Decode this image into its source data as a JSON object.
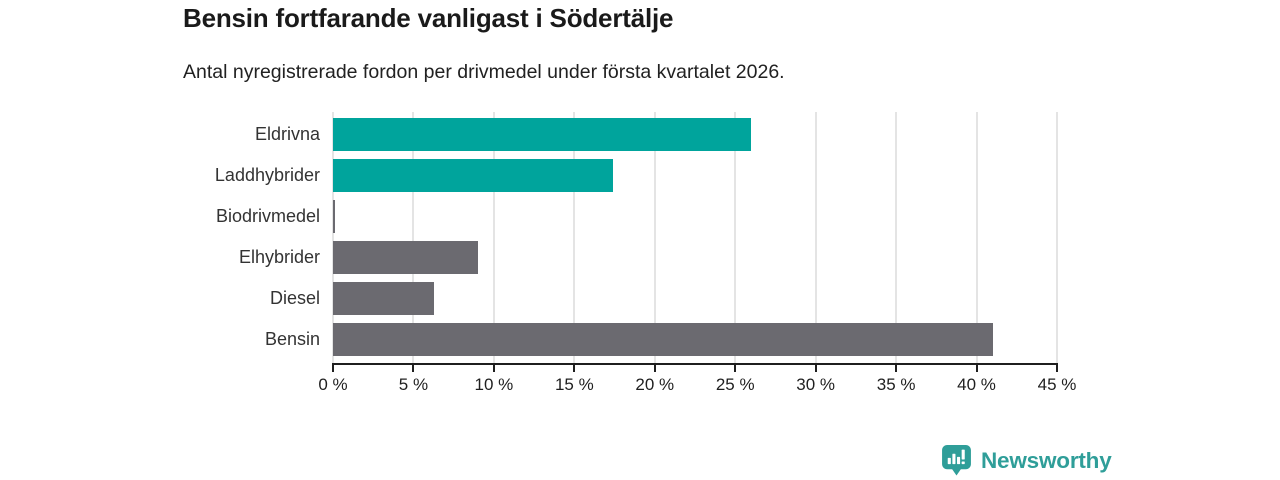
{
  "header": {
    "title": "Bensin fortfarande vanligast i Södertälje",
    "subtitle": "Antal nyregistrerade fordon per drivmedel under första kvartalet 2026."
  },
  "chart_data": {
    "type": "bar",
    "orientation": "horizontal",
    "title": "Bensin fortfarande vanligast i Södertälje",
    "subtitle": "Antal nyregistrerade fordon per drivmedel under första kvartalet 2026.",
    "categories": [
      "Eldrivna",
      "Laddhybrider",
      "Biodrivmedel",
      "Elhybrider",
      "Diesel",
      "Bensin"
    ],
    "values": [
      26,
      17.4,
      0.1,
      9,
      6.3,
      41
    ],
    "unit": "%",
    "xlabel": "",
    "ylabel": "",
    "xlim": [
      0,
      45
    ],
    "xticks": [
      0,
      5,
      10,
      15,
      20,
      25,
      30,
      35,
      40,
      45
    ],
    "xtick_suffix": " %",
    "grid": "vertical",
    "legend": "none",
    "bar_colors": [
      "#00a49c",
      "#00a49c",
      "#6b6a70",
      "#6b6a70",
      "#6b6a70",
      "#6b6a70"
    ]
  },
  "branding": {
    "logo_text": "Newsworthy",
    "logo_color": "#2f9e99",
    "logo_icon": "speech-bubble-bar-chart-icon"
  },
  "colors": {
    "background": "#ffffff",
    "accent_teal": "#00a49c",
    "neutral_gray": "#6b6a70",
    "axis": "#1f1f1f",
    "gridline": "#e4e4e4",
    "title_text": "#1a1a1a"
  }
}
